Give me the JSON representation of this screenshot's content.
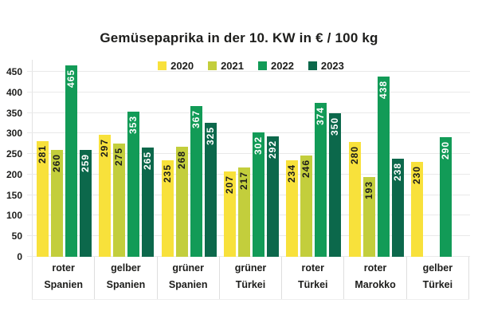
{
  "chart_data": {
    "type": "bar",
    "title": "Gemüsepaprika in der 10. KW in € / 100 kg",
    "xlabel": "",
    "ylabel": "",
    "ylim": [
      0,
      479
    ],
    "yticks": [
      0,
      50,
      100,
      150,
      200,
      250,
      300,
      350,
      400,
      450
    ],
    "grid": true,
    "legend_position": "top-center",
    "categories": [
      {
        "variety": "roter",
        "origin": "Spanien"
      },
      {
        "variety": "gelber",
        "origin": "Spanien"
      },
      {
        "variety": "grüner",
        "origin": "Spanien"
      },
      {
        "variety": "grüner",
        "origin": "Türkei"
      },
      {
        "variety": "roter",
        "origin": "Türkei"
      },
      {
        "variety": "roter",
        "origin": "Marokko"
      },
      {
        "variety": "gelber",
        "origin": "Türkei"
      }
    ],
    "series": [
      {
        "name": "2020",
        "color": "#F8E13B",
        "label_color": "#1d1d1b",
        "values": [
          281,
          297,
          235,
          207,
          234,
          280,
          230
        ]
      },
      {
        "name": "2021",
        "color": "#C3CE3C",
        "label_color": "#1d1d1b",
        "values": [
          260,
          275,
          268,
          217,
          246,
          193,
          null
        ]
      },
      {
        "name": "2022",
        "color": "#129B57",
        "label_color": "#ffffff",
        "values": [
          465,
          353,
          367,
          302,
          374,
          438,
          290
        ]
      },
      {
        "name": "2023",
        "color": "#0C684B",
        "label_color": "#ffffff",
        "values": [
          259,
          265,
          325,
          292,
          350,
          238,
          null
        ]
      }
    ]
  },
  "colors": {
    "text": "#1d1d1b",
    "gridline": "#e9e9e9",
    "separator": "#dedede",
    "background": "#ffffff"
  }
}
